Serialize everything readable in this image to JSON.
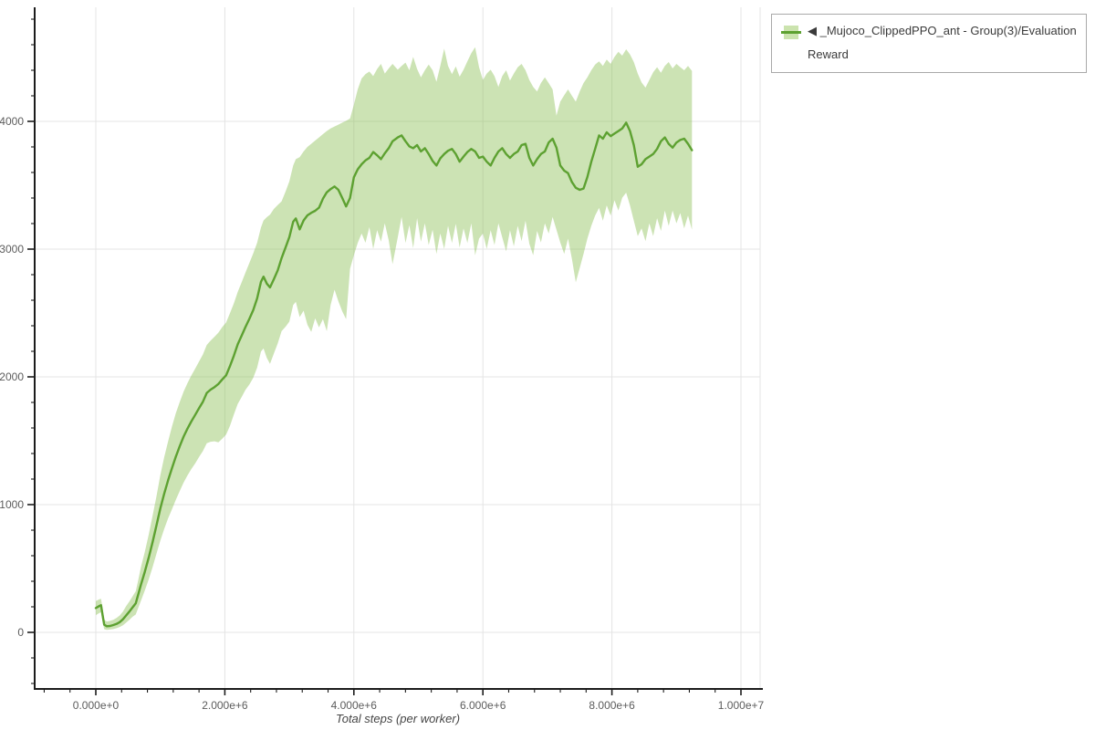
{
  "page": {
    "background": "#ffffff"
  },
  "legend": {
    "label": "◀ _Mujoco_ClippedPPO_ant - Group(3)/Evaluation Reward",
    "swatch_fill": "#cbe3ae",
    "swatch_line": "#5da131",
    "border_color": "#a9a9a9"
  },
  "colors": {
    "mean_line": "#5da131",
    "band_fill": "rgba(143,193,89,0.45)",
    "grid": "#e4e4e4",
    "axis": "#1c1c1c",
    "tick_label": "#5c5c5c",
    "axis_title": "#454545"
  },
  "chart_data": {
    "type": "line",
    "title": "",
    "xlabel": "Total steps (per worker)",
    "ylabel": "",
    "grid": true,
    "legend_position": "top-right-outside",
    "xlim": [
      -950000,
      10300000
    ],
    "ylim": [
      -443,
      4893
    ],
    "x_major_ticks": [
      {
        "value": 0,
        "label": "0.000e+0"
      },
      {
        "value": 2000000,
        "label": "2.000e+6"
      },
      {
        "value": 4000000,
        "label": "4.000e+6"
      },
      {
        "value": 6000000,
        "label": "6.000e+6"
      },
      {
        "value": 8000000,
        "label": "8.000e+6"
      },
      {
        "value": 10000000,
        "label": "1.000e+7"
      }
    ],
    "y_major_ticks": [
      {
        "value": 0,
        "label": "0"
      },
      {
        "value": 1000,
        "label": "1000"
      },
      {
        "value": 2000,
        "label": "2000"
      },
      {
        "value": 3000,
        "label": "3000"
      },
      {
        "value": 4000,
        "label": "4000"
      }
    ],
    "x_minor_step": 400000,
    "y_minor_step": 200,
    "series": [
      {
        "name": "_Mujoco_ClippedPPO_ant - Group(3)/Evaluation Reward",
        "color": "#5da131",
        "band_color": "rgba(143,193,89,0.45)",
        "x": [
          0,
          50000,
          80000,
          100000,
          130000,
          170000,
          220000,
          270000,
          320000,
          370000,
          420000,
          470000,
          520000,
          570000,
          620000,
          660000,
          700000,
          760000,
          820000,
          880000,
          940000,
          1000000,
          1060000,
          1120000,
          1180000,
          1240000,
          1300000,
          1360000,
          1420000,
          1480000,
          1540000,
          1600000,
          1660000,
          1720000,
          1780000,
          1840000,
          1900000,
          1960000,
          2020000,
          2080000,
          2140000,
          2200000,
          2260000,
          2320000,
          2380000,
          2440000,
          2500000,
          2560000,
          2600000,
          2650000,
          2700000,
          2760000,
          2820000,
          2880000,
          2940000,
          3000000,
          3060000,
          3100000,
          3160000,
          3220000,
          3280000,
          3340000,
          3400000,
          3460000,
          3520000,
          3580000,
          3640000,
          3700000,
          3760000,
          3820000,
          3880000,
          3940000,
          4000000,
          4060000,
          4120000,
          4180000,
          4240000,
          4300000,
          4360000,
          4420000,
          4480000,
          4540000,
          4600000,
          4680000,
          4740000,
          4800000,
          4860000,
          4920000,
          4980000,
          5040000,
          5100000,
          5160000,
          5220000,
          5280000,
          5340000,
          5400000,
          5460000,
          5520000,
          5580000,
          5640000,
          5700000,
          5760000,
          5820000,
          5880000,
          5940000,
          6000000,
          6060000,
          6120000,
          6180000,
          6240000,
          6300000,
          6360000,
          6420000,
          6480000,
          6540000,
          6600000,
          6660000,
          6720000,
          6780000,
          6840000,
          6900000,
          6960000,
          7020000,
          7080000,
          7140000,
          7200000,
          7260000,
          7320000,
          7380000,
          7440000,
          7500000,
          7560000,
          7620000,
          7680000,
          7740000,
          7800000,
          7860000,
          7920000,
          7980000,
          8040000,
          8100000,
          8160000,
          8220000,
          8280000,
          8340000,
          8400000,
          8460000,
          8520000,
          8580000,
          8640000,
          8700000,
          8760000,
          8820000,
          8880000,
          8940000,
          9000000,
          9060000,
          9120000,
          9180000,
          9240000
        ],
        "mean": [
          190,
          205,
          213,
          150,
          60,
          48,
          50,
          57,
          66,
          80,
          102,
          132,
          163,
          196,
          228,
          302,
          374,
          474,
          586,
          706,
          838,
          970,
          1084,
          1190,
          1284,
          1376,
          1456,
          1532,
          1594,
          1650,
          1702,
          1754,
          1806,
          1874,
          1900,
          1920,
          1944,
          1980,
          2012,
          2086,
          2166,
          2254,
          2322,
          2390,
          2454,
          2522,
          2614,
          2744,
          2784,
          2730,
          2700,
          2764,
          2834,
          2930,
          3012,
          3094,
          3214,
          3240,
          3154,
          3224,
          3264,
          3284,
          3300,
          3324,
          3394,
          3444,
          3470,
          3490,
          3464,
          3400,
          3334,
          3400,
          3562,
          3624,
          3664,
          3694,
          3714,
          3760,
          3734,
          3704,
          3750,
          3790,
          3844,
          3874,
          3890,
          3844,
          3804,
          3790,
          3814,
          3764,
          3790,
          3744,
          3690,
          3654,
          3710,
          3744,
          3770,
          3784,
          3744,
          3684,
          3724,
          3760,
          3784,
          3764,
          3714,
          3724,
          3684,
          3654,
          3714,
          3764,
          3790,
          3744,
          3714,
          3744,
          3764,
          3814,
          3824,
          3714,
          3654,
          3704,
          3744,
          3764,
          3834,
          3864,
          3794,
          3654,
          3614,
          3594,
          3524,
          3480,
          3464,
          3474,
          3564,
          3684,
          3784,
          3890,
          3864,
          3914,
          3884,
          3904,
          3924,
          3944,
          3990,
          3924,
          3814,
          3644,
          3664,
          3704,
          3724,
          3744,
          3784,
          3844,
          3874,
          3824,
          3794,
          3834,
          3854,
          3864,
          3824,
          3774
        ],
        "lo": [
          135,
          150,
          158,
          95,
          25,
          20,
          22,
          26,
          32,
          42,
          56,
          76,
          98,
          122,
          140,
          196,
          248,
          328,
          415,
          510,
          616,
          718,
          808,
          892,
          962,
          1038,
          1106,
          1172,
          1228,
          1278,
          1322,
          1372,
          1420,
          1480,
          1492,
          1496,
          1488,
          1516,
          1548,
          1618,
          1706,
          1788,
          1842,
          1898,
          1940,
          1992,
          2072,
          2198,
          2222,
          2148,
          2102,
          2182,
          2262,
          2358,
          2392,
          2432,
          2562,
          2588,
          2468,
          2518,
          2408,
          2352,
          2458,
          2388,
          2452,
          2358,
          2562,
          2682,
          2592,
          2512,
          2452,
          2846,
          2952,
          3048,
          3122,
          3050,
          3172,
          3002,
          3148,
          3058,
          3202,
          3068,
          2882,
          3092,
          3252,
          3048,
          3188,
          3008,
          3242,
          3058,
          3202,
          3032,
          3152,
          2962,
          3122,
          3002,
          3182,
          3048,
          3198,
          3012,
          3162,
          3048,
          3202,
          2952,
          3082,
          3122,
          3002,
          3148,
          3032,
          3202,
          3092,
          2982,
          3148,
          3022,
          3182,
          3062,
          3222,
          3042,
          2952,
          3142,
          3052,
          3202,
          3122,
          3252,
          3152,
          3052,
          2962,
          3082,
          2922,
          2740,
          2852,
          2962,
          3082,
          3182,
          3262,
          3322,
          3222,
          3342,
          3262,
          3382,
          3302,
          3402,
          3442,
          3342,
          3222,
          3102,
          3162,
          3062,
          3202,
          3102,
          3242,
          3142,
          3302,
          3182,
          3302,
          3202,
          3282,
          3162,
          3262,
          3152
        ],
        "hi": [
          245,
          258,
          263,
          205,
          100,
          85,
          90,
          98,
          112,
          132,
          162,
          205,
          242,
          282,
          322,
          416,
          512,
          630,
          766,
          912,
          1066,
          1230,
          1370,
          1494,
          1610,
          1716,
          1802,
          1884,
          1950,
          2010,
          2064,
          2120,
          2176,
          2250,
          2284,
          2314,
          2346,
          2390,
          2426,
          2500,
          2576,
          2664,
          2740,
          2816,
          2892,
          2966,
          3050,
          3170,
          3224,
          3250,
          3270,
          3314,
          3346,
          3374,
          3450,
          3530,
          3654,
          3704,
          3720,
          3764,
          3800,
          3824,
          3850,
          3874,
          3900,
          3924,
          3944,
          3960,
          3974,
          3990,
          4004,
          4022,
          4130,
          4250,
          4336,
          4370,
          4390,
          4354,
          4410,
          4450,
          4374,
          4414,
          4450,
          4404,
          4434,
          4460,
          4400,
          4504,
          4410,
          4344,
          4400,
          4444,
          4400,
          4310,
          4434,
          4570,
          4434,
          4370,
          4430,
          4350,
          4404,
          4470,
          4534,
          4580,
          4424,
          4324,
          4374,
          4404,
          4354,
          4270,
          4354,
          4400,
          4320,
          4374,
          4424,
          4450,
          4400,
          4324,
          4270,
          4234,
          4300,
          4344,
          4300,
          4250,
          4044,
          4154,
          4204,
          4250,
          4200,
          4154,
          4234,
          4300,
          4344,
          4400,
          4444,
          4470,
          4434,
          4484,
          4450,
          4504,
          4544,
          4514,
          4564,
          4524,
          4464,
          4374,
          4304,
          4264,
          4324,
          4384,
          4424,
          4380,
          4434,
          4464,
          4414,
          4450,
          4424,
          4400,
          4434,
          4394
        ]
      }
    ]
  }
}
